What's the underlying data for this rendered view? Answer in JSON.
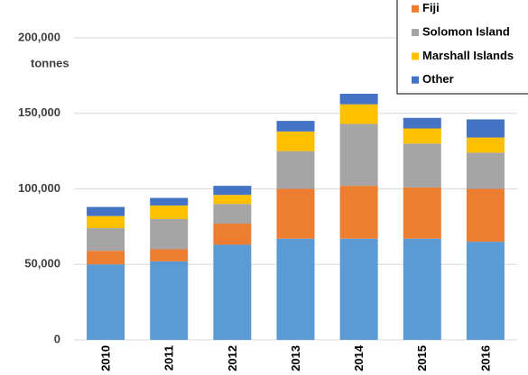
{
  "chart_data": {
    "type": "stacked_bar",
    "y_label": "tonnes",
    "categories": [
      "2010",
      "2011",
      "2012",
      "2013",
      "2014",
      "2015",
      "2016"
    ],
    "series": [
      {
        "color": "#5b9bd5",
        "values": [
          50000,
          52000,
          63000,
          67000,
          67000,
          67000,
          65000
        ]
      },
      {
        "name": "Fiji",
        "color": "#ed7d31",
        "values": [
          9000,
          8000,
          14000,
          33000,
          35000,
          34000,
          35000
        ]
      },
      {
        "name": "Solomon Island",
        "color": "#a5a5a5",
        "values": [
          15000,
          20000,
          13000,
          25000,
          41000,
          29000,
          24000
        ]
      },
      {
        "name": "Marshall Islands",
        "color": "#ffc000",
        "values": [
          8000,
          9000,
          6000,
          13000,
          13000,
          10000,
          10000
        ]
      },
      {
        "name": "Other",
        "color": "#4472c4",
        "values": [
          6000,
          5000,
          6000,
          7000,
          7000,
          7000,
          12000
        ]
      }
    ],
    "ylim": [
      0,
      200000
    ],
    "yticks": [
      0,
      {
        "value": 50000,
        "label": "50,000"
      },
      {
        "value": 100000,
        "label": "100,000"
      },
      {
        "value": 150000,
        "label": "150,000"
      },
      {
        "value": 200000,
        "label": "200,000"
      }
    ],
    "grid": true,
    "legend": "top-right"
  }
}
